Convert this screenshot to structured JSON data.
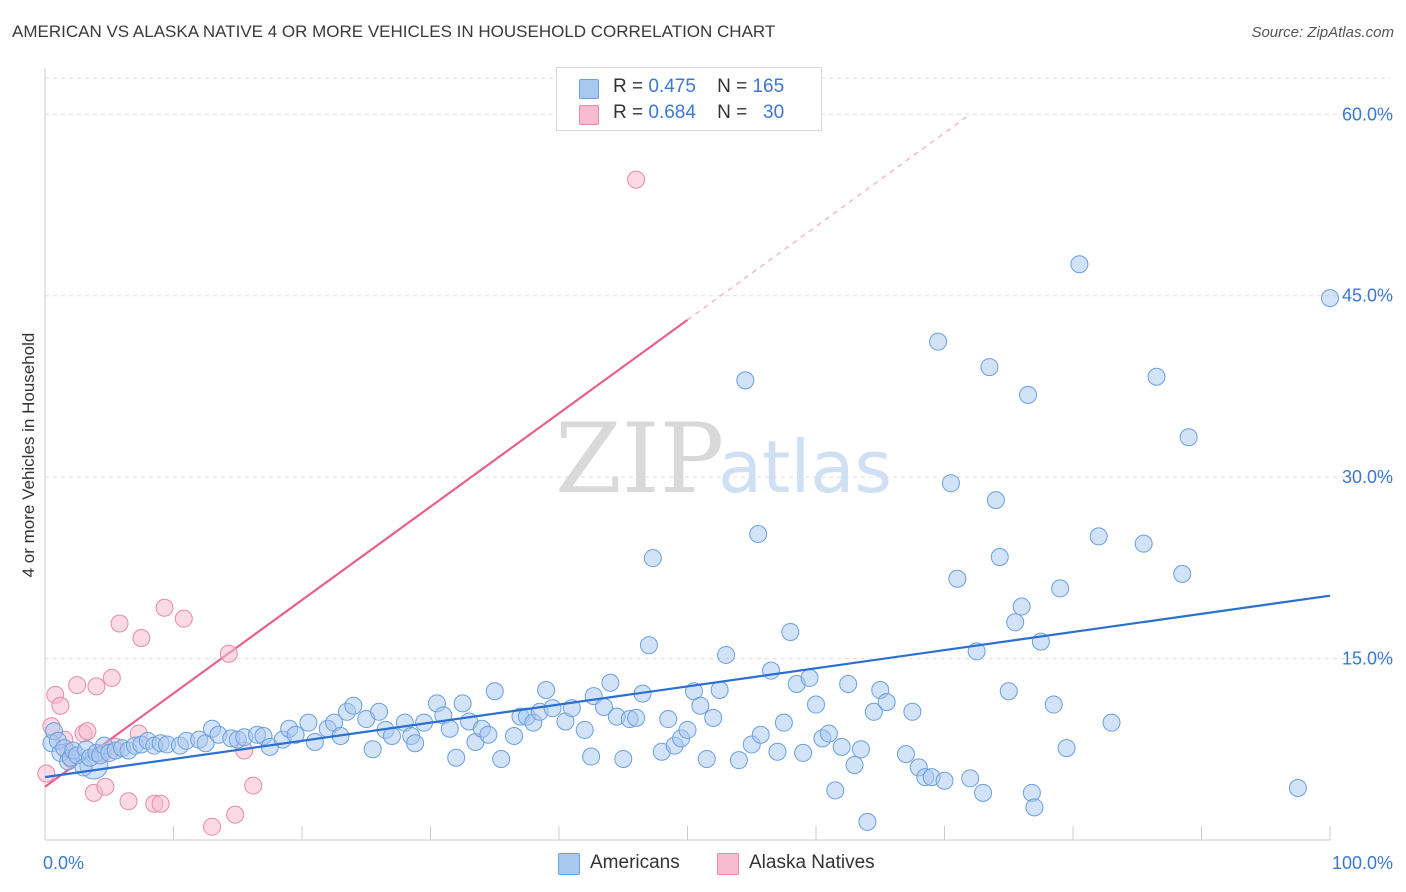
{
  "title": "AMERICAN VS ALASKA NATIVE 4 OR MORE VEHICLES IN HOUSEHOLD CORRELATION CHART",
  "source": "Source: ZipAtlas.com",
  "watermark": {
    "zip": "ZIP",
    "atlas": "atlas"
  },
  "legend": {
    "rows": [
      {
        "r_label": "R =",
        "r_value": "0.475",
        "n_label": "N =",
        "n_value": "165",
        "color": "#a8c8f0"
      },
      {
        "r_label": "R =",
        "r_value": "0.684",
        "n_label": "N =",
        "n_value": "30",
        "color": "#f8bcd0"
      }
    ]
  },
  "bottom_legend": {
    "americans": "Americans",
    "alaska_natives": "Alaska Natives"
  },
  "colors": {
    "blue_fill": "#a8c8f0",
    "blue_stroke": "#6a9fe0",
    "blue_line": "#2a6fd1",
    "pink_fill": "#f8bcd0",
    "pink_stroke": "#e88aa8",
    "pink_line": "#e8608c",
    "grid": "#dddddd",
    "tick_label": "#3b78d0"
  },
  "chart_data": {
    "type": "scatter",
    "ylabel": "4 or more Vehicles in Household",
    "xlabel": "",
    "xlim": [
      0,
      100
    ],
    "ylim": [
      0,
      63
    ],
    "x_tick_labels": [
      {
        "value": 0,
        "label": "0.0%"
      },
      {
        "value": 100,
        "label": "100.0%"
      }
    ],
    "y_tick_labels": [
      {
        "value": 15,
        "label": "15.0%"
      },
      {
        "value": 30,
        "label": "30.0%"
      },
      {
        "value": 45,
        "label": "45.0%"
      },
      {
        "value": 60,
        "label": "60.0%"
      }
    ],
    "grid": true,
    "series": [
      {
        "name": "Americans",
        "trendline": {
          "x": [
            0,
            100
          ],
          "y": [
            5.2,
            20.2
          ]
        },
        "points": [
          [
            0.5,
            8.0
          ],
          [
            0.7,
            9.0
          ],
          [
            1.0,
            8.2
          ],
          [
            1.2,
            7.2
          ],
          [
            1.5,
            7.6
          ],
          [
            1.8,
            6.5
          ],
          [
            2.0,
            6.8
          ],
          [
            2.2,
            7.4
          ],
          [
            2.5,
            7.0
          ],
          [
            3.0,
            6.0
          ],
          [
            3.2,
            7.5
          ],
          [
            3.5,
            6.8
          ],
          [
            4.0,
            7.2
          ],
          [
            4.3,
            7.0
          ],
          [
            4.6,
            7.8
          ],
          [
            5.0,
            7.2
          ],
          [
            5.5,
            7.4
          ],
          [
            6.0,
            7.6
          ],
          [
            6.5,
            7.4
          ],
          [
            7.0,
            7.8
          ],
          [
            7.5,
            7.9
          ],
          [
            8.0,
            8.2
          ],
          [
            8.5,
            7.8
          ],
          [
            9.0,
            8.0
          ],
          [
            9.5,
            7.9
          ],
          [
            10.5,
            7.8
          ],
          [
            11.0,
            8.2
          ],
          [
            12.0,
            8.3
          ],
          [
            12.5,
            8.0
          ],
          [
            13.0,
            9.2
          ],
          [
            13.5,
            8.7
          ],
          [
            14.5,
            8.4
          ],
          [
            15.0,
            8.3
          ],
          [
            15.5,
            8.5
          ],
          [
            16.5,
            8.7
          ],
          [
            17.0,
            8.6
          ],
          [
            17.5,
            7.7
          ],
          [
            18.5,
            8.3
          ],
          [
            19.0,
            9.2
          ],
          [
            19.5,
            8.7
          ],
          [
            20.5,
            9.7
          ],
          [
            21.0,
            8.1
          ],
          [
            22.0,
            9.2
          ],
          [
            22.5,
            9.7
          ],
          [
            23.0,
            8.6
          ],
          [
            23.5,
            10.6
          ],
          [
            24.0,
            11.1
          ],
          [
            25.0,
            10.0
          ],
          [
            25.5,
            7.5
          ],
          [
            26.0,
            10.6
          ],
          [
            26.5,
            9.1
          ],
          [
            27.0,
            8.6
          ],
          [
            28.0,
            9.7
          ],
          [
            28.5,
            8.6
          ],
          [
            28.8,
            8.0
          ],
          [
            29.5,
            9.7
          ],
          [
            30.5,
            11.3
          ],
          [
            31.0,
            10.3
          ],
          [
            31.5,
            9.2
          ],
          [
            32.0,
            6.8
          ],
          [
            32.5,
            11.3
          ],
          [
            33.0,
            9.8
          ],
          [
            33.5,
            8.1
          ],
          [
            34.0,
            9.2
          ],
          [
            34.5,
            8.7
          ],
          [
            35.0,
            12.3
          ],
          [
            35.5,
            6.7
          ],
          [
            36.5,
            8.6
          ],
          [
            37.0,
            10.2
          ],
          [
            37.5,
            10.2
          ],
          [
            38.0,
            9.7
          ],
          [
            38.5,
            10.6
          ],
          [
            39.0,
            12.4
          ],
          [
            39.5,
            10.9
          ],
          [
            40.5,
            9.8
          ],
          [
            41.0,
            10.9
          ],
          [
            42.0,
            9.1
          ],
          [
            42.5,
            6.9
          ],
          [
            42.7,
            11.9
          ],
          [
            43.5,
            11.0
          ],
          [
            44.0,
            13.0
          ],
          [
            44.5,
            10.2
          ],
          [
            45.0,
            6.7
          ],
          [
            45.5,
            10.0
          ],
          [
            46.0,
            10.1
          ],
          [
            46.5,
            12.1
          ],
          [
            47.0,
            16.1
          ],
          [
            47.3,
            23.3
          ],
          [
            48.0,
            7.3
          ],
          [
            48.5,
            10.0
          ],
          [
            49.0,
            7.8
          ],
          [
            49.5,
            8.4
          ],
          [
            50.0,
            9.1
          ],
          [
            50.5,
            12.3
          ],
          [
            51.0,
            11.1
          ],
          [
            51.5,
            6.7
          ],
          [
            52.0,
            10.1
          ],
          [
            52.5,
            12.4
          ],
          [
            53.0,
            15.3
          ],
          [
            54.0,
            6.6
          ],
          [
            54.5,
            38.0
          ],
          [
            55.0,
            7.9
          ],
          [
            55.5,
            25.3
          ],
          [
            55.7,
            8.7
          ],
          [
            56.5,
            14.0
          ],
          [
            57.0,
            7.3
          ],
          [
            57.5,
            9.7
          ],
          [
            58.0,
            17.2
          ],
          [
            58.5,
            12.9
          ],
          [
            59.0,
            7.2
          ],
          [
            59.5,
            13.4
          ],
          [
            60.0,
            11.2
          ],
          [
            60.5,
            8.4
          ],
          [
            61.0,
            8.8
          ],
          [
            61.5,
            4.1
          ],
          [
            62.0,
            7.7
          ],
          [
            62.5,
            12.9
          ],
          [
            63.0,
            6.2
          ],
          [
            63.5,
            7.5
          ],
          [
            64.0,
            1.5
          ],
          [
            64.5,
            10.6
          ],
          [
            65.0,
            12.4
          ],
          [
            65.5,
            11.4
          ],
          [
            67.0,
            7.1
          ],
          [
            67.5,
            10.6
          ],
          [
            68.0,
            6.0
          ],
          [
            68.5,
            5.2
          ],
          [
            69.0,
            5.2
          ],
          [
            69.5,
            41.2
          ],
          [
            70.0,
            4.9
          ],
          [
            70.5,
            29.5
          ],
          [
            71.0,
            21.6
          ],
          [
            72.0,
            5.1
          ],
          [
            72.5,
            15.6
          ],
          [
            73.0,
            3.9
          ],
          [
            73.5,
            39.1
          ],
          [
            74.0,
            28.1
          ],
          [
            74.3,
            23.4
          ],
          [
            75.0,
            12.3
          ],
          [
            75.5,
            18.0
          ],
          [
            76.0,
            19.3
          ],
          [
            76.5,
            36.8
          ],
          [
            76.8,
            3.9
          ],
          [
            77.0,
            2.7
          ],
          [
            77.5,
            16.4
          ],
          [
            78.5,
            11.2
          ],
          [
            79.0,
            20.8
          ],
          [
            79.5,
            7.6
          ],
          [
            80.5,
            47.6
          ],
          [
            82.0,
            25.1
          ],
          [
            83.0,
            9.7
          ],
          [
            85.5,
            24.5
          ],
          [
            86.5,
            38.3
          ],
          [
            88.5,
            22.0
          ],
          [
            89.0,
            33.3
          ],
          [
            97.5,
            4.3
          ],
          [
            100.0,
            44.8
          ]
        ]
      },
      {
        "name": "Alaska Natives",
        "trendline": {
          "x": [
            0,
            50
          ],
          "y": [
            4.4,
            43.0
          ]
        },
        "trendline_dashed": {
          "x": [
            50,
            72
          ],
          "y": [
            43.0,
            60.0
          ]
        },
        "points": [
          [
            0.1,
            5.5
          ],
          [
            0.5,
            9.4
          ],
          [
            0.8,
            12.0
          ],
          [
            1.2,
            11.1
          ],
          [
            1.5,
            8.3
          ],
          [
            1.8,
            7.3
          ],
          [
            2.0,
            6.7
          ],
          [
            2.5,
            12.8
          ],
          [
            3.0,
            8.8
          ],
          [
            3.3,
            9.0
          ],
          [
            3.8,
            3.9
          ],
          [
            4.0,
            12.7
          ],
          [
            4.5,
            7.2
          ],
          [
            4.7,
            4.4
          ],
          [
            5.2,
            13.4
          ],
          [
            5.5,
            7.7
          ],
          [
            5.8,
            17.9
          ],
          [
            6.5,
            3.2
          ],
          [
            7.3,
            8.8
          ],
          [
            7.5,
            16.7
          ],
          [
            8.5,
            3.0
          ],
          [
            9.0,
            3.0
          ],
          [
            9.3,
            19.2
          ],
          [
            10.8,
            18.3
          ],
          [
            13.0,
            1.1
          ],
          [
            14.3,
            15.4
          ],
          [
            14.8,
            2.1
          ],
          [
            15.5,
            7.4
          ],
          [
            16.2,
            4.5
          ],
          [
            46.0,
            54.6
          ]
        ]
      }
    ]
  }
}
